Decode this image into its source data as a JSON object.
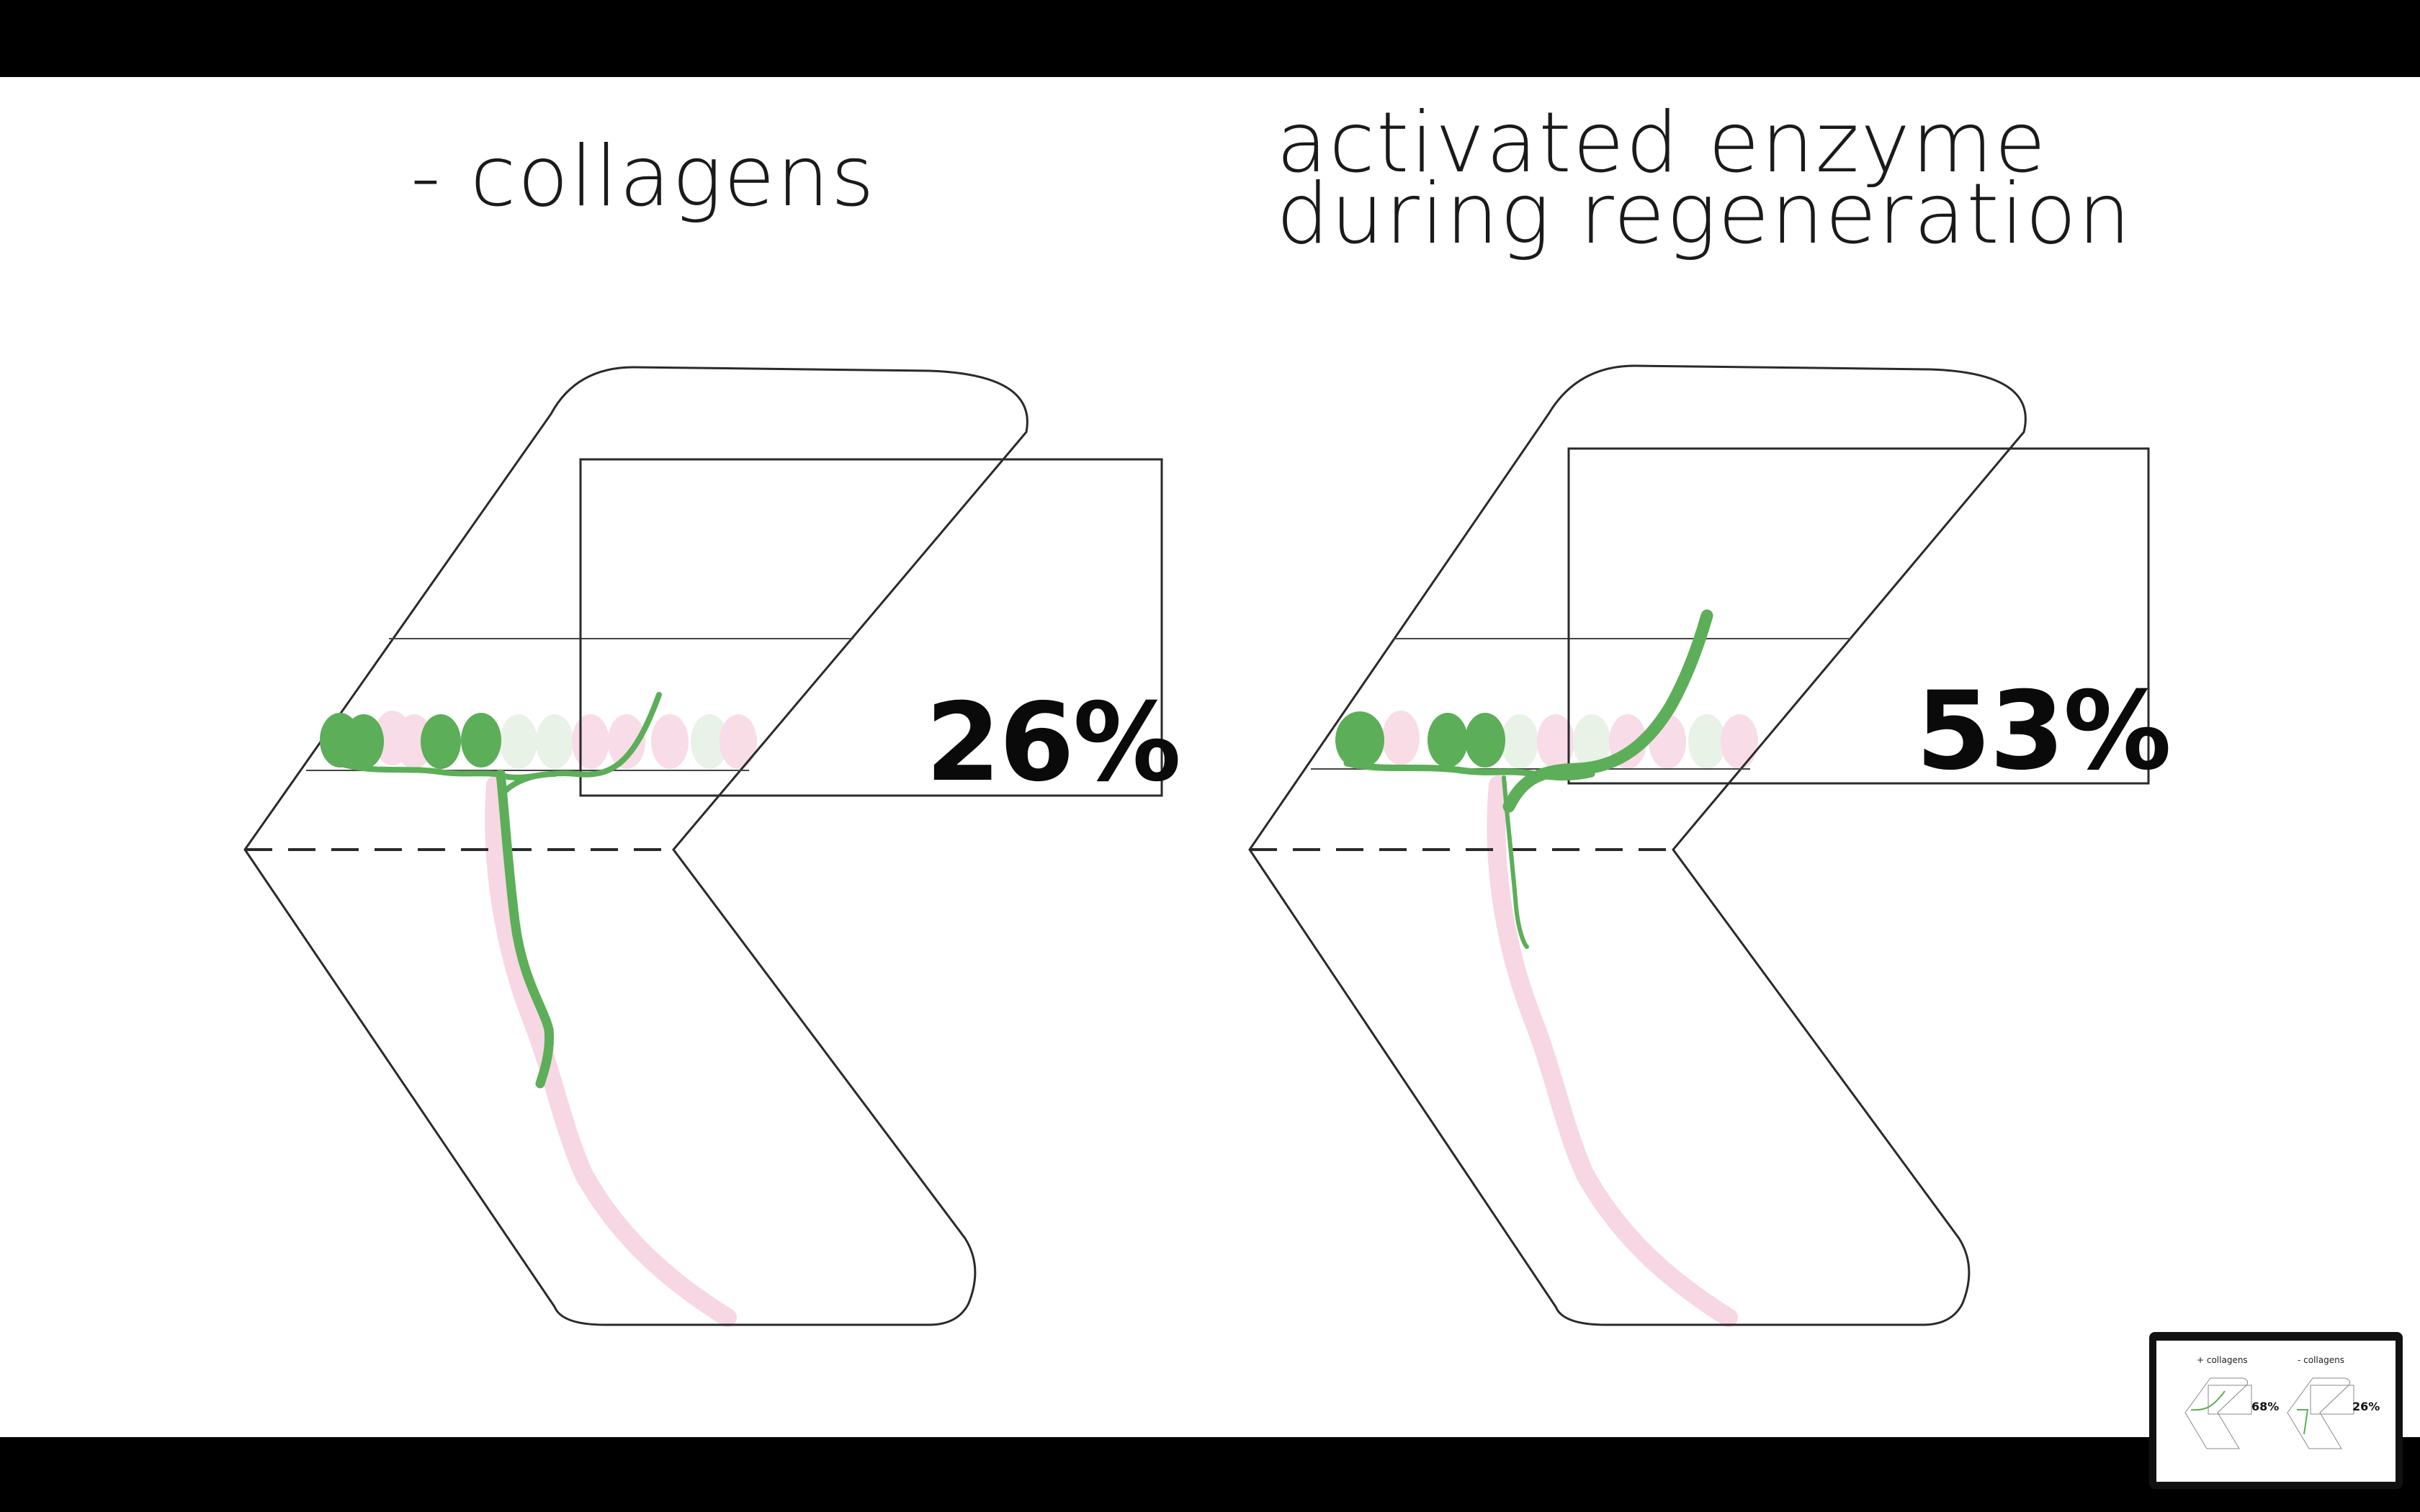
{
  "panels": {
    "left": {
      "title": "- collagens",
      "percent": "26%"
    },
    "right": {
      "title_line1": "activated enzyme",
      "title_line2": "during regeneration",
      "percent": "53%"
    }
  },
  "thumbnail": {
    "left_title": "+ collagens",
    "left_percent": "68%",
    "right_title": "- collagens",
    "right_percent": "26%"
  },
  "colors": {
    "axon_green": "#5cae58",
    "ghost_pink": "#f7d7e3",
    "ghost_green": "#dcecdb",
    "outline": "#2a2a2a"
  }
}
